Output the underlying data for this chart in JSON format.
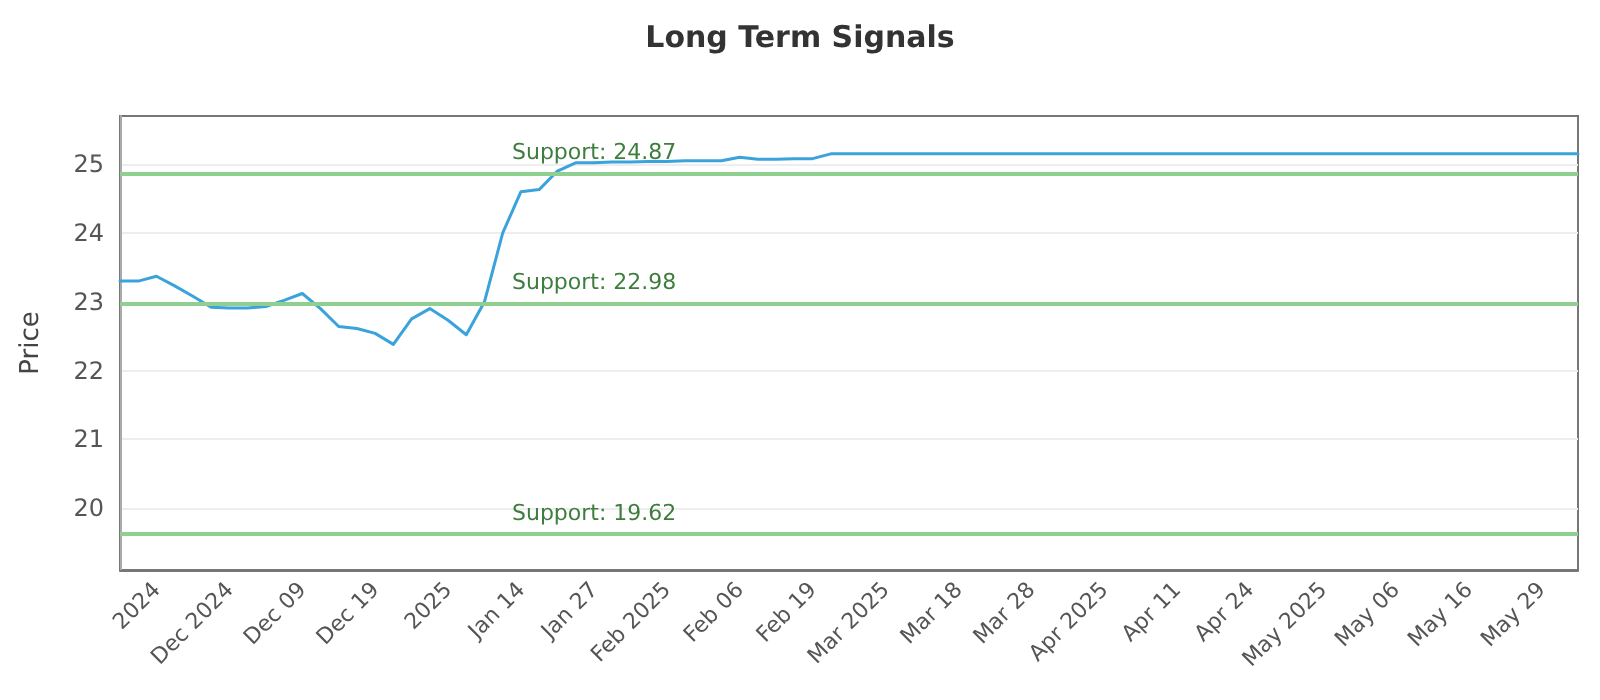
{
  "chart_data": {
    "type": "line",
    "title": "Long Term Signals",
    "ylabel": "Price",
    "categories": [
      null,
      null,
      "2024",
      null,
      null,
      null,
      "Dec 2024",
      null,
      null,
      null,
      "Dec 09",
      null,
      null,
      null,
      "Dec 19",
      null,
      null,
      null,
      "2025",
      null,
      null,
      null,
      "Jan 14",
      null,
      null,
      null,
      "Jan 27",
      null,
      null,
      null,
      "Feb 2025",
      null,
      null,
      null,
      "Feb 06",
      null,
      null,
      null,
      "Feb 19",
      null,
      null,
      null,
      "Mar 2025",
      null,
      null,
      null,
      "Mar 18",
      null,
      null,
      null,
      "Mar 28",
      null,
      null,
      null,
      "Apr 2025",
      null,
      null,
      null,
      "Apr 11",
      null,
      null,
      null,
      "Apr 24",
      null,
      null,
      null,
      "May 2025",
      null,
      null,
      null,
      "May 06",
      null,
      null,
      null,
      "May 16",
      null,
      null,
      null,
      "May 29",
      null,
      null
    ],
    "series": [
      {
        "color": "#3ba3dc",
        "values": [
          23.3,
          23.3,
          23.37,
          23.23,
          23.08,
          22.92,
          22.91,
          22.91,
          22.93,
          23.02,
          23.12,
          22.9,
          22.64,
          22.61,
          22.54,
          22.38,
          22.75,
          22.9,
          22.73,
          22.52,
          23.0,
          24.0,
          24.6,
          24.63,
          24.9,
          25.02,
          25.02,
          25.03,
          25.03,
          25.04,
          25.04,
          25.05,
          25.05,
          25.05,
          25.1,
          25.07,
          25.07,
          25.08,
          25.08,
          25.15,
          25.15,
          25.15,
          25.15,
          25.15,
          25.15,
          25.15,
          25.15,
          25.15,
          25.15,
          25.15,
          25.15,
          25.15,
          25.15,
          25.15,
          25.15,
          25.15,
          25.15,
          25.15,
          25.15,
          25.15,
          25.15,
          25.15,
          25.15,
          25.15,
          25.15,
          25.15,
          25.15,
          25.15,
          25.15,
          25.15,
          25.15,
          25.15,
          25.15,
          25.15,
          25.15,
          25.15,
          25.15,
          25.15,
          25.15,
          25.15,
          25.15
        ]
      }
    ],
    "ylim": [
      19.1,
      25.7
    ],
    "yticks": [
      20,
      21,
      22,
      23,
      24,
      25
    ],
    "grid": "y",
    "marker": "none",
    "line_style": "solid",
    "ref_lines": [
      {
        "axis": "y",
        "value": 24.87,
        "label": "Support: 24.87",
        "color": "#8fcf8f"
      },
      {
        "axis": "y",
        "value": 22.98,
        "label": "Support: 22.98",
        "color": "#8fcf8f"
      },
      {
        "axis": "y",
        "value": 19.62,
        "label": "Support: 19.62",
        "color": "#8fcf8f"
      }
    ]
  }
}
